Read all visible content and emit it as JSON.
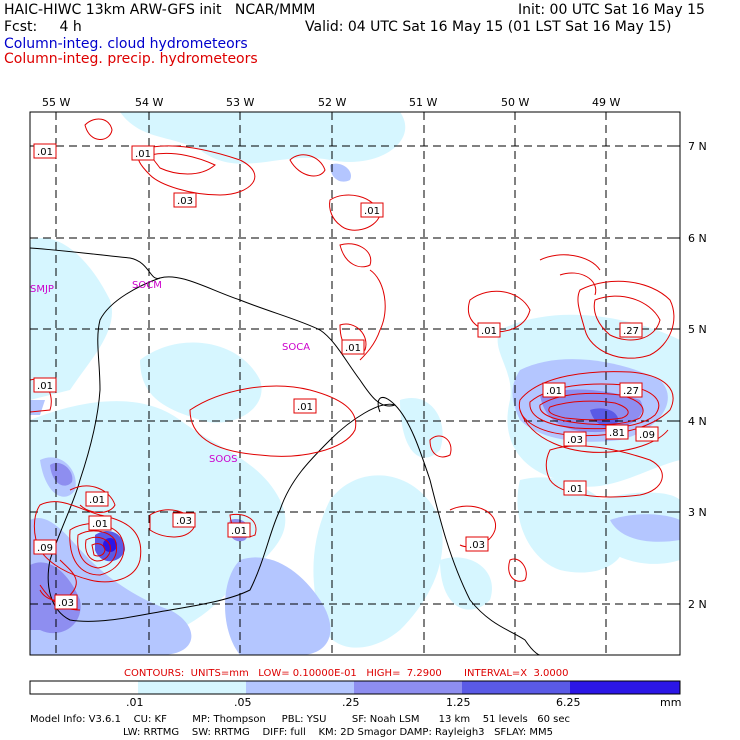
{
  "header": {
    "model_title": "HAIC-HIWC 13km ARW-GFS init   NCAR/MMM",
    "init_time": "Init: 00 UTC Sat 16 May 15",
    "forecast": "Fcst:     4 h",
    "valid_time": "Valid: 04 UTC Sat 16 May 15 (01 LST Sat 16 May 15)",
    "field_cloud": "Column-integ. cloud hydrometeors",
    "field_precip": "Column-integ. precip. hydrometeors",
    "cloud_color": "#0000cc",
    "precip_color": "#dd0000"
  },
  "map": {
    "longitude_labels": [
      "55 W",
      "54 W",
      "53 W",
      "52 W",
      "51 W",
      "50 W",
      "49 W"
    ],
    "latitude_labels": [
      "7 N",
      "6 N",
      "5 N",
      "4 N",
      "3 N",
      "2 N"
    ],
    "station_labels": [
      "SMJP",
      "SOCM",
      "SOCA",
      "SOOS"
    ],
    "station_color": "#cc00cc",
    "contour_labels": [
      ".01",
      ".01",
      ".03",
      ".01",
      ".01",
      ".01",
      ".01",
      ".27",
      ".01",
      ".27",
      ".81",
      ".09",
      ".03",
      ".01",
      ".01",
      ".01",
      ".09",
      ".03",
      ".03",
      ".01",
      ".03",
      ".01"
    ]
  },
  "contour_info": "CONTOURS:  UNITS=mm   LOW= 0.10000E-01   HIGH=  7.2900       INTERVAL=X  3.0000",
  "colorbar": {
    "ticks": [
      ".01",
      ".05",
      ".25",
      "1.25",
      "6.25"
    ],
    "units": "mm",
    "colors": [
      "#ffffff",
      "#d6f6ff",
      "#b4c6ff",
      "#8e8ef0",
      "#5a5ae6",
      "#2b16e6"
    ]
  },
  "model_info": {
    "line1": "Model Info: V3.6.1    CU: KF        MP: Thompson     PBL: YSU        SF: Noah LSM      13 km    51 levels   60 sec",
    "line2": "LW: RRTMG    SW: RRTMG    DIFF: full    KM: 2D Smagor DAMP: Rayleigh3   SFLAY: MM5"
  }
}
